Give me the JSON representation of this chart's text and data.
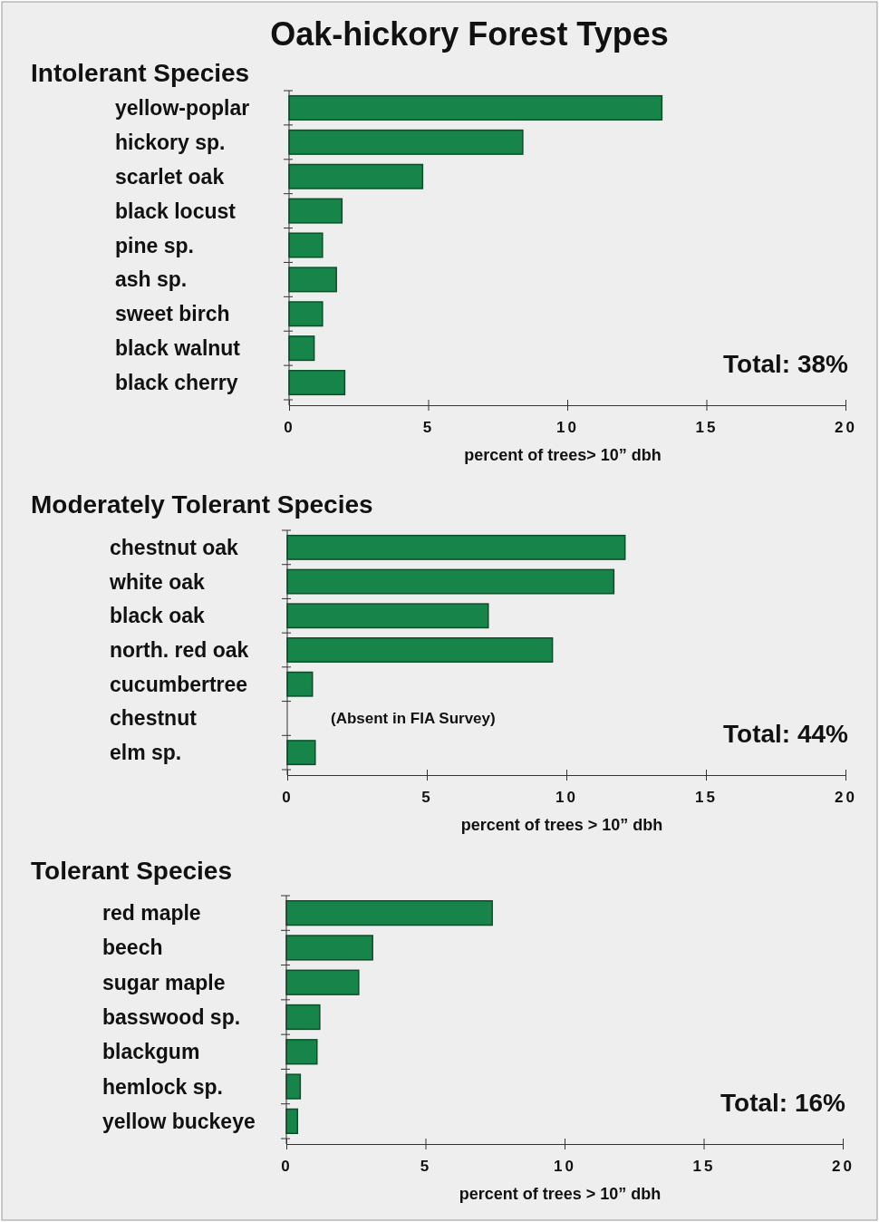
{
  "chart_data": [
    {
      "type": "bar",
      "orientation": "horizontal",
      "title": "Oak-hickory Forest Types",
      "subtitle": "Intolerant Species",
      "categories": [
        "yellow-poplar",
        "hickory sp.",
        "scarlet oak",
        "black locust",
        "pine sp.",
        "ash sp.",
        "sweet birch",
        "black walnut",
        "black cherry"
      ],
      "values": [
        13.4,
        8.4,
        4.8,
        1.9,
        1.2,
        1.7,
        1.2,
        0.9,
        2.0
      ],
      "color": "#17844a",
      "xlim": [
        0,
        20
      ],
      "xticks": [
        0,
        5,
        10,
        15,
        20
      ],
      "xlabel": "percent of trees> 10” dbh",
      "annotations": [
        "Total:  38%"
      ],
      "grid": false
    },
    {
      "type": "bar",
      "orientation": "horizontal",
      "title": "Moderately Tolerant Species",
      "categories": [
        "chestnut oak",
        "white oak",
        "black oak",
        "north. red oak",
        "cucumbertree",
        "chestnut",
        "elm sp."
      ],
      "values": [
        12.1,
        11.7,
        7.2,
        9.5,
        0.9,
        null,
        1.0
      ],
      "color": "#17844a",
      "xlim": [
        0,
        20
      ],
      "xticks": [
        0,
        5,
        10,
        15,
        20
      ],
      "xlabel": "percent of trees > 10” dbh",
      "annotations": [
        "(Absent in FIA Survey)",
        "Total:  44%"
      ],
      "grid": false
    },
    {
      "type": "bar",
      "orientation": "horizontal",
      "title": "Tolerant Species",
      "categories": [
        "red maple",
        "beech",
        "sugar maple",
        "basswood sp.",
        "blackgum",
        "hemlock sp.",
        "yellow buckeye"
      ],
      "values": [
        7.4,
        3.1,
        2.6,
        1.2,
        1.1,
        0.5,
        0.4
      ],
      "color": "#17844a",
      "xlim": [
        0,
        20
      ],
      "xticks": [
        0,
        5,
        10,
        15,
        20
      ],
      "xlabel": "percent of trees > 10” dbh",
      "annotations": [
        "Total:  16%"
      ],
      "grid": false
    }
  ]
}
